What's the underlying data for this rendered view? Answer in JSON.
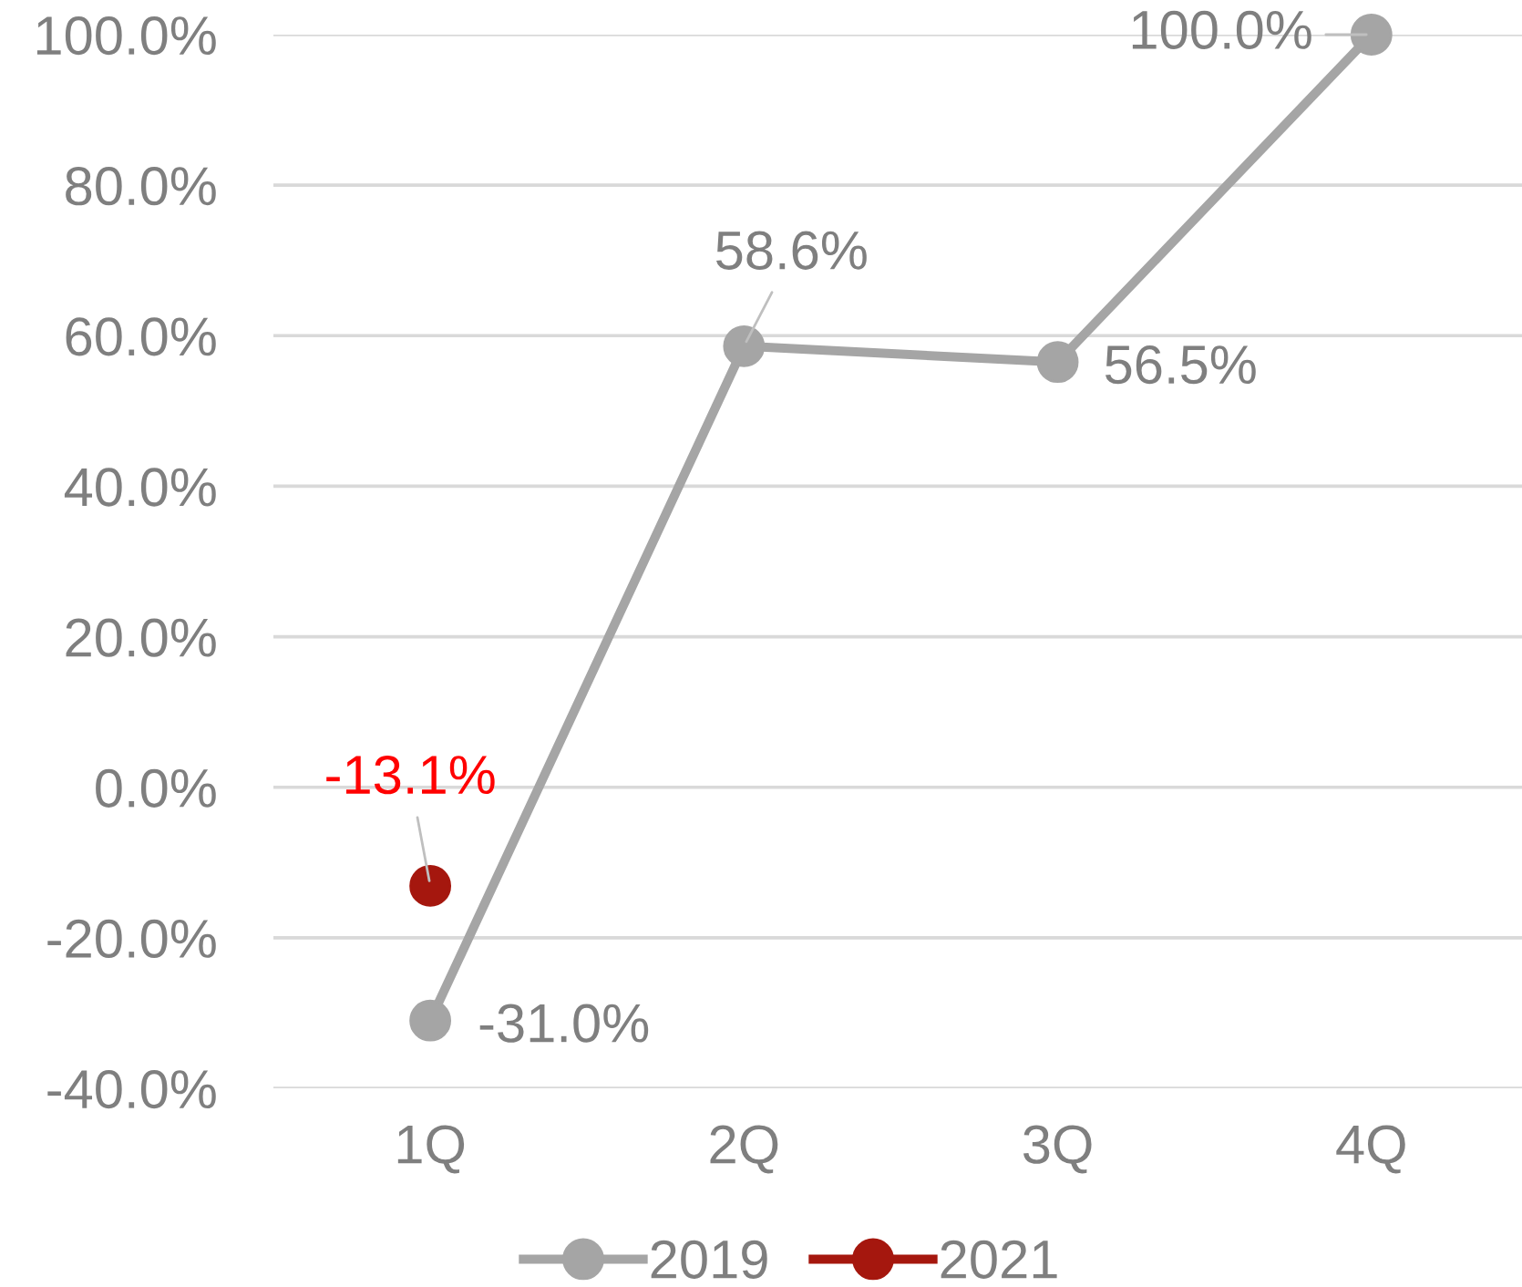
{
  "chart_data": {
    "type": "line",
    "categories": [
      "1Q",
      "2Q",
      "3Q",
      "4Q"
    ],
    "series": [
      {
        "name": "2019",
        "color": "#a5a5a5",
        "values": [
          -31.0,
          58.6,
          56.5,
          100.0
        ],
        "value_labels": [
          "-31.0%",
          "58.6%",
          "56.5%",
          "100.0%"
        ]
      },
      {
        "name": "2021",
        "color": "#a5170e",
        "values": [
          -13.1,
          null,
          null,
          null
        ],
        "value_labels": [
          "-13.1%",
          null,
          null,
          null
        ]
      }
    ],
    "ylim": [
      -40,
      100
    ],
    "yticks": [
      {
        "value": -40,
        "label": "-40.0%"
      },
      {
        "value": -20,
        "label": "-20.0%"
      },
      {
        "value": 0,
        "label": "0.0%"
      },
      {
        "value": 20,
        "label": "20.0%"
      },
      {
        "value": 40,
        "label": "40.0%"
      },
      {
        "value": 60,
        "label": "60.0%"
      },
      {
        "value": 80,
        "label": "80.0%"
      },
      {
        "value": 100,
        "label": "100.0%"
      }
    ],
    "grid": "y",
    "legend": "bottom",
    "marker": "circle",
    "line_style": "solid"
  }
}
